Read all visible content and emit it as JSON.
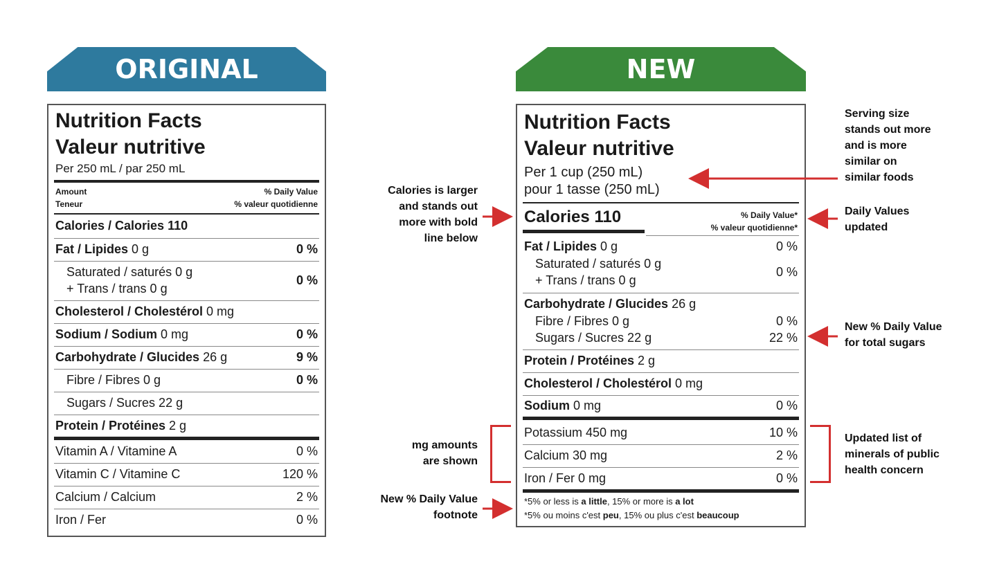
{
  "original": {
    "banner": "ORIGINAL",
    "title1": "Nutrition Facts",
    "title2": "Valeur nutritive",
    "serving": "Per 250 mL  / par 250 mL",
    "amount_en": "Amount",
    "amount_fr": "Teneur",
    "dv_en": "% Daily Value",
    "dv_fr": "% valeur quotidienne",
    "calories": "Calories / Calories 110",
    "rows": [
      {
        "label_bold": "Fat / Lipides",
        "label_rest": " 0 g",
        "value": "0 %"
      },
      {
        "label_line1": "Saturated / saturés 0 g",
        "label_line2": "+ Trans / trans 0 g",
        "value": "0 %"
      },
      {
        "label_bold": "Cholesterol / Cholestérol",
        "label_rest": " 0 mg",
        "value": ""
      },
      {
        "label_bold": "Sodium / Sodium",
        "label_rest": " 0 mg",
        "value": "0 %"
      },
      {
        "label_bold": "Carbohydrate / Glucides",
        "label_rest": " 26 g",
        "value": "9 %"
      },
      {
        "label": "Fibre / Fibres 0 g",
        "value": "0 %"
      },
      {
        "label": "Sugars / Sucres 22 g",
        "value": ""
      },
      {
        "label_bold": "Protein / Protéines",
        "label_rest": " 2 g",
        "value": ""
      },
      {
        "label": "Vitamin A / Vitamine A",
        "value": "0 %"
      },
      {
        "label": "Vitamin C / Vitamine C",
        "value": "120 %"
      },
      {
        "label": "Calcium / Calcium",
        "value": "2 %"
      },
      {
        "label": "Iron / Fer",
        "value": "0 %"
      }
    ]
  },
  "new": {
    "banner": "NEW",
    "title1": "Nutrition Facts",
    "title2": "Valeur nutritive",
    "serving1": "Per 1 cup (250 mL)",
    "serving2": "pour 1 tasse (250 mL)",
    "calories": "Calories 110",
    "dv_en": "% Daily Value*",
    "dv_fr": "% valeur quotidienne*",
    "fat": {
      "bold": "Fat / Lipides",
      "rest": " 0 g",
      "value": "0 %"
    },
    "sat": {
      "line1": "Saturated / saturés 0 g",
      "line2": "+ Trans / trans 0 g",
      "value": "0 %"
    },
    "carb": {
      "bold": "Carbohydrate / Glucides",
      "rest": " 26 g"
    },
    "fibre": {
      "label": "Fibre / Fibres 0 g",
      "value": "0 %"
    },
    "sugars": {
      "label": "Sugars / Sucres 22 g",
      "value": "22 %"
    },
    "protein": {
      "bold": "Protein / Protéines",
      "rest": " 2 g"
    },
    "cholesterol": {
      "bold": "Cholesterol / Cholestérol",
      "rest": " 0 mg"
    },
    "sodium": {
      "bold": "Sodium",
      "rest": " 0 mg",
      "value": "0 %"
    },
    "potassium": {
      "label": "Potassium 450 mg",
      "value": "10 %"
    },
    "calcium": {
      "label": "Calcium 30 mg",
      "value": "2 %"
    },
    "iron": {
      "label": "Iron / Fer 0 mg",
      "value": "0 %"
    },
    "foot1_a": "*5% or less is ",
    "foot1_b": "a little",
    "foot1_c": ", 15% or more is ",
    "foot1_d": "a lot",
    "foot2_a": "*5% ou moins c'est ",
    "foot2_b": "peu",
    "foot2_c": ", 15% ou plus c'est ",
    "foot2_d": "beaucoup"
  },
  "annotations": {
    "calories": "Calories is larger\nand stands out\nmore with bold\nline below",
    "mg": "mg amounts\nare shown",
    "footnote": "New % Daily Value\nfootnote",
    "serving": "Serving size\nstands out more\nand is more\nsimilar on\nsimilar foods",
    "dv": "Daily Values\nupdated",
    "sugars": "New % Daily Value\nfor total sugars",
    "minerals": "Updated list of\nminerals of public\nhealth concern"
  },
  "colors": {
    "original_banner": "#2e7a9e",
    "new_banner": "#3a8a3b",
    "annotation": "#d32f2f"
  }
}
